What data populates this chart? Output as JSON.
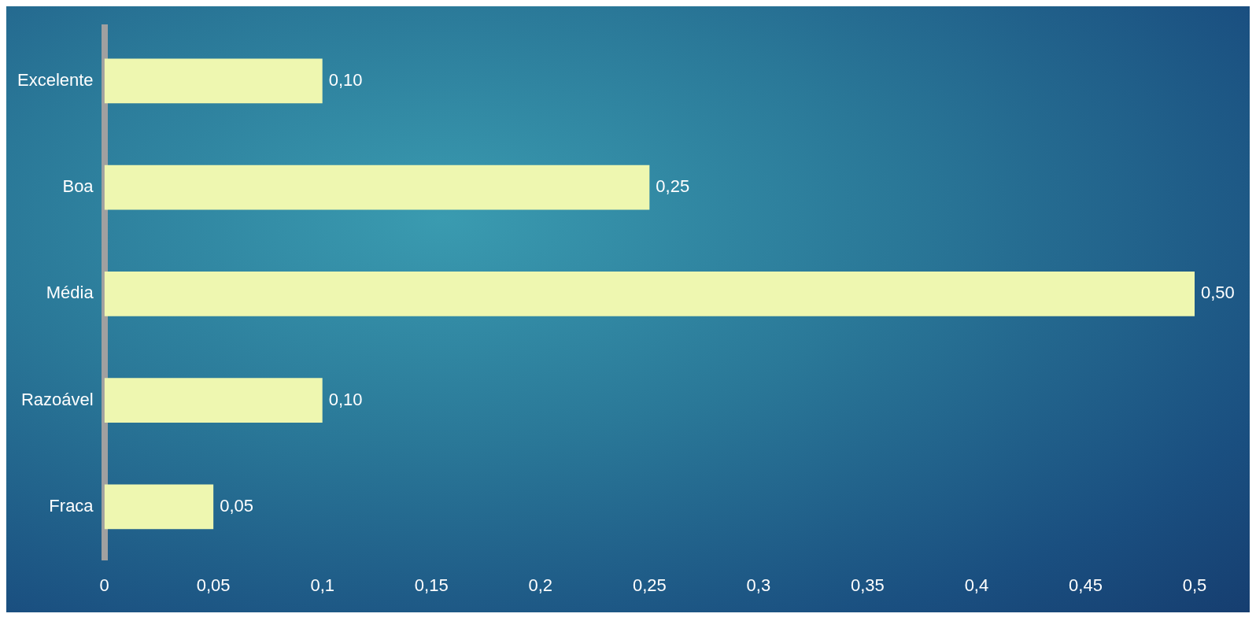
{
  "chart_data": {
    "type": "bar",
    "orientation": "horizontal",
    "categories": [
      "Excelente",
      "Boa",
      "Média",
      "Razoável",
      "Fraca"
    ],
    "values": [
      0.1,
      0.25,
      0.5,
      0.1,
      0.05
    ],
    "value_labels": [
      "0,10",
      "0,25",
      "0,50",
      "0,10",
      "0,05"
    ],
    "color": "#eef7b0",
    "xlim": [
      0,
      0.5
    ],
    "xticks": [
      0,
      {
        "value": 0.05,
        "label": "0,05"
      },
      {
        "value": 0.1,
        "label": "0,1"
      },
      {
        "value": 0.15,
        "label": "0,15"
      },
      {
        "value": 0.2,
        "label": "0,2"
      },
      {
        "value": 0.25,
        "label": "0,25"
      },
      {
        "value": 0.3,
        "label": "0,3"
      },
      {
        "value": 0.35,
        "label": "0,35"
      },
      {
        "value": 0.4,
        "label": "0,4"
      },
      {
        "value": 0.45,
        "label": "0,45"
      },
      {
        "value": 0.5,
        "label": "0,5"
      }
    ],
    "grid": false,
    "legend": false
  }
}
